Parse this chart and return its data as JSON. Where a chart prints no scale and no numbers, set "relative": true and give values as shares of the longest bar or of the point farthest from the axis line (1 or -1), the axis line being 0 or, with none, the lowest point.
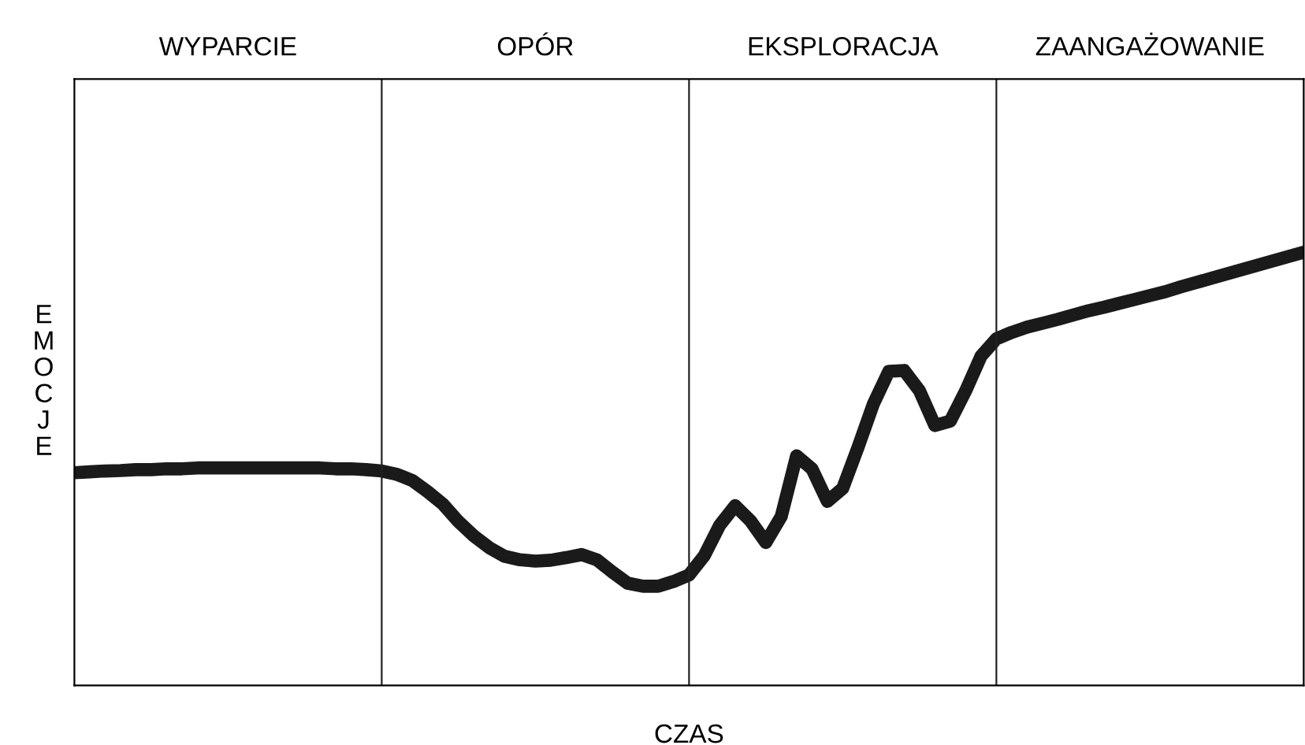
{
  "chart_data": {
    "type": "line",
    "relative": true,
    "xlabel": "CZAS",
    "ylabel": "EMOCJE",
    "marker": "none",
    "line_style": "solid",
    "grid": "x",
    "annotations": [
      "WYPARCIE",
      "OPÓR",
      "EKSPLORACJA",
      "ZAANGAŻOWANIE"
    ],
    "categories": [
      null,
      null,
      null,
      null,
      null,
      null,
      null,
      null,
      null,
      null,
      null,
      null,
      null,
      null,
      null,
      null,
      null,
      null,
      null,
      null,
      null,
      null,
      null,
      null,
      null,
      null,
      null,
      null,
      null,
      null,
      null,
      null,
      null,
      null,
      null,
      null,
      null,
      null,
      null,
      null,
      null,
      null,
      null,
      null,
      null,
      null,
      null,
      null,
      null,
      null,
      null,
      null,
      null,
      null,
      null,
      null,
      null,
      null,
      null,
      null,
      null,
      null,
      null,
      null,
      null,
      null,
      null,
      null,
      null,
      null,
      null,
      null,
      null,
      null,
      null,
      null,
      null,
      null,
      null,
      null,
      null
    ],
    "series": [
      {
        "color": "#1a1a1a",
        "values": [
          0.491,
          0.493,
          0.495,
          0.496,
          0.498,
          0.498,
          0.5,
          0.5,
          0.502,
          0.502,
          0.502,
          0.502,
          0.502,
          0.502,
          0.502,
          0.502,
          0.502,
          0.5,
          0.5,
          0.498,
          0.495,
          0.487,
          0.473,
          0.447,
          0.418,
          0.378,
          0.345,
          0.318,
          0.298,
          0.29,
          0.287,
          0.289,
          0.295,
          0.302,
          0.29,
          0.262,
          0.236,
          0.229,
          0.229,
          0.24,
          0.255,
          0.3,
          0.37,
          0.415,
          0.38,
          0.33,
          0.39,
          0.53,
          0.5,
          0.425,
          0.455,
          0.55,
          0.65,
          0.725,
          0.727,
          0.68,
          0.6,
          0.61,
          0.68,
          0.76,
          0.8,
          0.815,
          0.827,
          0.836,
          0.845,
          0.855,
          0.865,
          0.873,
          0.882,
          0.891,
          0.9,
          0.909,
          0.92,
          0.93,
          0.94,
          0.95,
          0.96,
          0.97,
          0.98,
          0.99,
          1
        ]
      }
    ]
  }
}
